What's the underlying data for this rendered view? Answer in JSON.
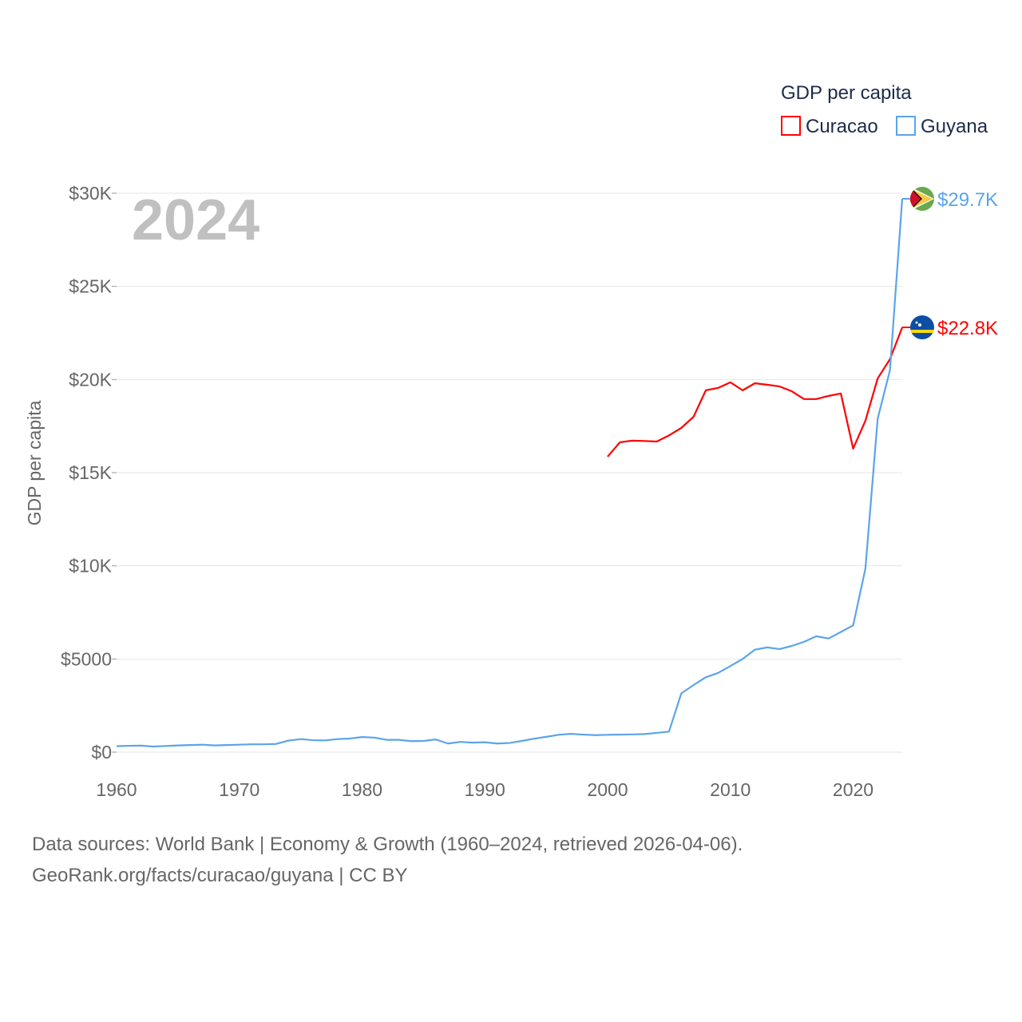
{
  "chart_data": {
    "type": "line",
    "title": "GDP per capita",
    "year_label": "2024",
    "xlabel": "",
    "ylabel": "GDP per capita",
    "xlim": [
      1960,
      2024
    ],
    "ylim": [
      0,
      30000
    ],
    "x_ticks": [
      1960,
      1970,
      1980,
      1990,
      2000,
      2010,
      2020
    ],
    "x_tick_labels": [
      "1960",
      "1970",
      "1980",
      "1990",
      "2000",
      "2010",
      "2020"
    ],
    "y_ticks": [
      0,
      5000,
      10000,
      15000,
      20000,
      25000,
      30000
    ],
    "y_tick_labels": [
      "$0",
      "$5000",
      "$10K",
      "$15K",
      "$20K",
      "$25K",
      "$30K"
    ],
    "grid": true,
    "legend_position": "top-right",
    "series": [
      {
        "name": "Curacao",
        "color": "#ff0000",
        "flag": "curacao-flag",
        "end_label": "$22.8K",
        "start_year": 2000,
        "values": [
          15860,
          16630,
          16720,
          16700,
          16670,
          17000,
          17400,
          18000,
          19420,
          19550,
          19850,
          19420,
          19800,
          19720,
          19630,
          19370,
          18950,
          18950,
          19120,
          19250,
          16290,
          17790,
          20060,
          21090,
          22800
        ]
      },
      {
        "name": "Guyana",
        "color": "#5ba4ea",
        "flag": "guyana-flag",
        "end_label": "$29.7K",
        "start_year": 1960,
        "values": [
          320,
          340,
          350,
          300,
          330,
          360,
          380,
          400,
          360,
          380,
          400,
          420,
          420,
          440,
          620,
          700,
          640,
          630,
          700,
          730,
          810,
          780,
          660,
          660,
          590,
          600,
          680,
          460,
          550,
          510,
          530,
          460,
          490,
          600,
          720,
          820,
          930,
          980,
          940,
          910,
          930,
          940,
          950,
          970,
          1030,
          1100,
          3150,
          3600,
          4020,
          4250,
          4620,
          5000,
          5500,
          5620,
          5530,
          5700,
          5920,
          6220,
          6100,
          6450,
          6800,
          9850,
          17900,
          20500,
          29700
        ]
      }
    ]
  },
  "footer": {
    "line1": "Data sources: World Bank | Economy & Growth (1960–2024, retrieved 2026-04-06).",
    "line2": "GeoRank.org/facts/curacao/guyana | CC BY"
  }
}
